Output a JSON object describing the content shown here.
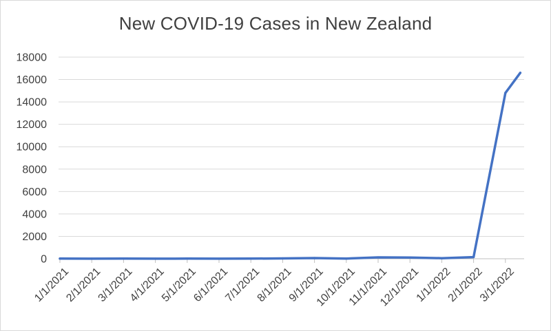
{
  "chart_data": {
    "type": "line",
    "title": "New COVID-19 Cases in New Zealand",
    "xlabel": "",
    "ylabel": "",
    "x": [
      "1/1/2021",
      "2/1/2021",
      "3/1/2021",
      "4/1/2021",
      "5/1/2021",
      "6/1/2021",
      "7/1/2021",
      "8/1/2021",
      "9/1/2021",
      "10/1/2021",
      "11/1/2021",
      "12/1/2021",
      "1/1/2022",
      "2/1/2022",
      "3/1/2022",
      "3/15/2022"
    ],
    "x_tick_labels": [
      "1/1/2021",
      "2/1/2021",
      "3/1/2021",
      "4/1/2021",
      "5/1/2021",
      "6/1/2021",
      "7/1/2021",
      "8/1/2021",
      "9/1/2021",
      "10/1/2021",
      "11/1/2021",
      "12/1/2021",
      "1/1/2022",
      "2/1/2022",
      "3/1/2022"
    ],
    "series": [
      {
        "values": [
          10,
          5,
          10,
          5,
          10,
          5,
          10,
          30,
          60,
          20,
          120,
          110,
          50,
          150,
          14800,
          16600
        ]
      }
    ],
    "ylim": [
      0,
      18000
    ],
    "y_ticks": [
      "0",
      "2000",
      "4000",
      "6000",
      "8000",
      "10000",
      "12000",
      "14000",
      "16000",
      "18000"
    ],
    "grid": true,
    "legend": "none",
    "colors": {
      "line": "#4472c4",
      "grid": "#d9d9d9",
      "axis": "#bfbfbf",
      "text": "#404040"
    }
  }
}
